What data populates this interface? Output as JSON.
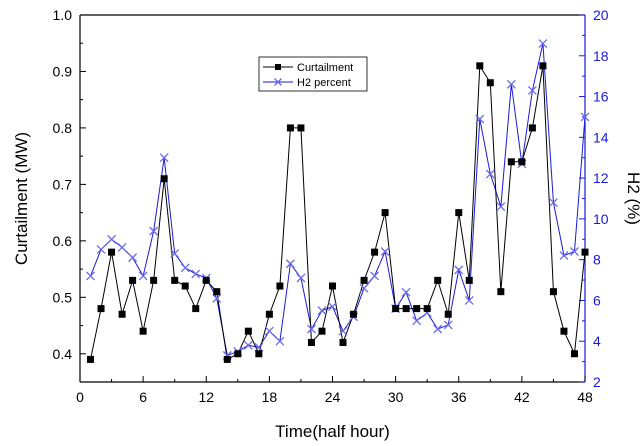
{
  "chart_data": {
    "type": "line",
    "xlabel": "Time(half hour)",
    "ylabel_left": "Curtailment (MW)",
    "ylabel_right": "H2 (%)",
    "xlim": [
      0,
      48
    ],
    "ylim_left": [
      0.35,
      1.0
    ],
    "ylim_right": [
      2,
      20
    ],
    "xticks": [
      0,
      6,
      12,
      18,
      24,
      30,
      36,
      42,
      48
    ],
    "yticks_left": [
      0.4,
      0.5,
      0.6,
      0.7,
      0.8,
      0.9,
      1.0
    ],
    "yticks_right": [
      2,
      4,
      6,
      8,
      10,
      12,
      14,
      16,
      18,
      20
    ],
    "legend_position": "top-center",
    "grid": false,
    "colors": {
      "curtailment": "#000000",
      "h2": "#1a1adc",
      "right_axis": "#1a1adc",
      "left_axis": "#000000"
    },
    "series": [
      {
        "name": "Curtailment",
        "axis": "left",
        "marker": "filled-square",
        "x": [
          1,
          2,
          3,
          4,
          5,
          6,
          7,
          8,
          9,
          10,
          11,
          12,
          13,
          14,
          15,
          16,
          17,
          18,
          19,
          20,
          21,
          22,
          23,
          24,
          25,
          26,
          27,
          28,
          29,
          30,
          31,
          32,
          33,
          34,
          35,
          36,
          37,
          38,
          39,
          40,
          41,
          42,
          43,
          44,
          45,
          46,
          47,
          48
        ],
        "values": [
          0.39,
          0.48,
          0.58,
          0.47,
          0.53,
          0.44,
          0.53,
          0.71,
          0.53,
          0.52,
          0.48,
          0.53,
          0.51,
          0.39,
          0.4,
          0.44,
          0.4,
          0.47,
          0.52,
          0.8,
          0.8,
          0.42,
          0.44,
          0.52,
          0.42,
          0.47,
          0.53,
          0.58,
          0.65,
          0.48,
          0.48,
          0.48,
          0.48,
          0.53,
          0.47,
          0.65,
          0.53,
          0.91,
          0.88,
          0.51,
          0.74,
          0.74,
          0.8,
          0.91,
          0.51,
          0.44,
          0.4,
          0.58
        ]
      },
      {
        "name": "H2 percent",
        "axis": "right",
        "marker": "x-cross",
        "x": [
          1,
          2,
          3,
          4,
          5,
          6,
          7,
          8,
          9,
          10,
          11,
          12,
          13,
          14,
          15,
          16,
          17,
          18,
          19,
          20,
          21,
          22,
          23,
          24,
          25,
          26,
          27,
          28,
          29,
          30,
          31,
          32,
          33,
          34,
          35,
          36,
          37,
          38,
          39,
          40,
          41,
          42,
          43,
          44,
          45,
          46,
          47,
          48
        ],
        "values": [
          7.2,
          8.5,
          9.0,
          8.6,
          8.1,
          7.2,
          9.4,
          13.0,
          8.3,
          7.6,
          7.3,
          7.1,
          6.1,
          3.3,
          3.5,
          3.8,
          3.7,
          4.5,
          4.0,
          7.8,
          7.1,
          4.6,
          5.5,
          5.7,
          4.5,
          5.2,
          6.6,
          7.2,
          8.4,
          5.6,
          6.4,
          5.0,
          5.4,
          4.6,
          4.8,
          7.5,
          6.0,
          14.9,
          12.2,
          10.6,
          16.6,
          12.7,
          16.3,
          18.6,
          10.8,
          8.2,
          8.4,
          15.0
        ]
      }
    ]
  }
}
